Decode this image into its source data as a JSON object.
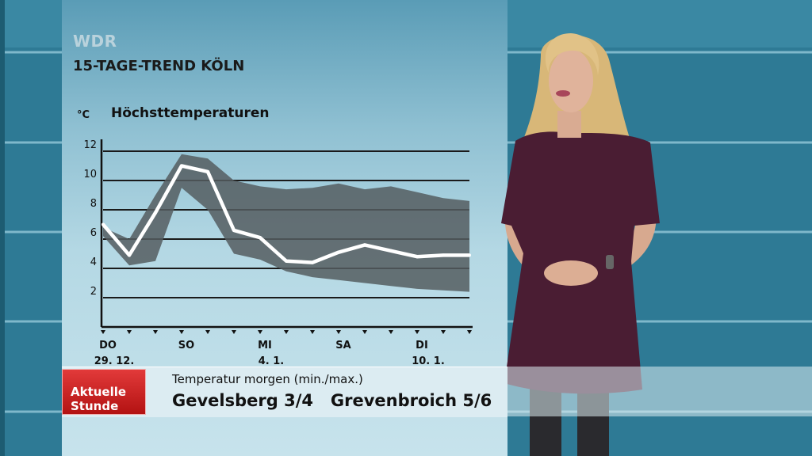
{
  "broadcaster": "WDR",
  "headline": "15-TAGE-TREND KÖLN",
  "chart_data": {
    "type": "line",
    "title": "Höchsttemperaturen",
    "ylabel": "°C",
    "ylim": [
      0,
      13
    ],
    "yticks": [
      2,
      4,
      6,
      8,
      10,
      12
    ],
    "grid": true,
    "x": [
      1,
      2,
      3,
      4,
      5,
      6,
      7,
      8,
      9,
      10,
      11,
      12,
      13,
      14,
      15
    ],
    "values": [
      7.0,
      4.9,
      7.8,
      11.0,
      10.6,
      6.6,
      6.1,
      4.5,
      4.4,
      5.1,
      5.6,
      5.2,
      4.8,
      4.9,
      4.9
    ],
    "band_upper": [
      6.8,
      6.0,
      9.0,
      11.8,
      11.5,
      10.0,
      9.6,
      9.4,
      9.5,
      9.8,
      9.4,
      9.6,
      9.2,
      8.8,
      8.6
    ],
    "band_lower": [
      6.2,
      4.2,
      4.5,
      9.5,
      8.0,
      5.0,
      4.6,
      3.8,
      3.4,
      3.2,
      3.0,
      2.8,
      2.6,
      2.5,
      2.4
    ],
    "x_labels": [
      {
        "day": 1,
        "top": "DO",
        "bottom": "29. 12."
      },
      {
        "day": 4,
        "top": "SO",
        "bottom": ""
      },
      {
        "day": 7,
        "top": "MI",
        "bottom": "4. 1."
      },
      {
        "day": 10,
        "top": "SA",
        "bottom": ""
      },
      {
        "day": 13,
        "top": "DI",
        "bottom": "10. 1."
      }
    ],
    "colors": {
      "line": "#ffffff",
      "band": "#555d60",
      "grid": "#1a1a1a"
    }
  },
  "ticker": {
    "brand_line1": "Aktuelle",
    "brand_line2": "Stunde",
    "heading": "Temperatur morgen (min./max.)",
    "text": "Gevelsberg 3/4   Grevenbroich 5/6"
  }
}
